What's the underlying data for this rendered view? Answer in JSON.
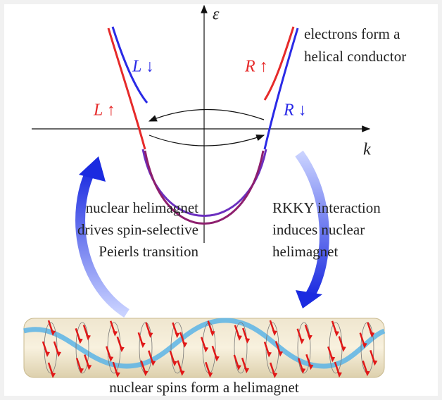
{
  "axes": {
    "y_label": "ε",
    "x_label": "k"
  },
  "bands": {
    "left_down": "L ↓",
    "right_up": "R ↑",
    "left_up": "L ↑",
    "right_down": "R ↓"
  },
  "annotations": {
    "top_right": [
      "electrons form a",
      "helical conductor"
    ],
    "left": [
      "nuclear helimagnet",
      "drives spin-selective",
      "Peierls transition"
    ],
    "right": [
      "RKKY interaction",
      "induces nuclear",
      "helimagnet"
    ],
    "bottom": "nuclear spins form a helimagnet"
  }
}
